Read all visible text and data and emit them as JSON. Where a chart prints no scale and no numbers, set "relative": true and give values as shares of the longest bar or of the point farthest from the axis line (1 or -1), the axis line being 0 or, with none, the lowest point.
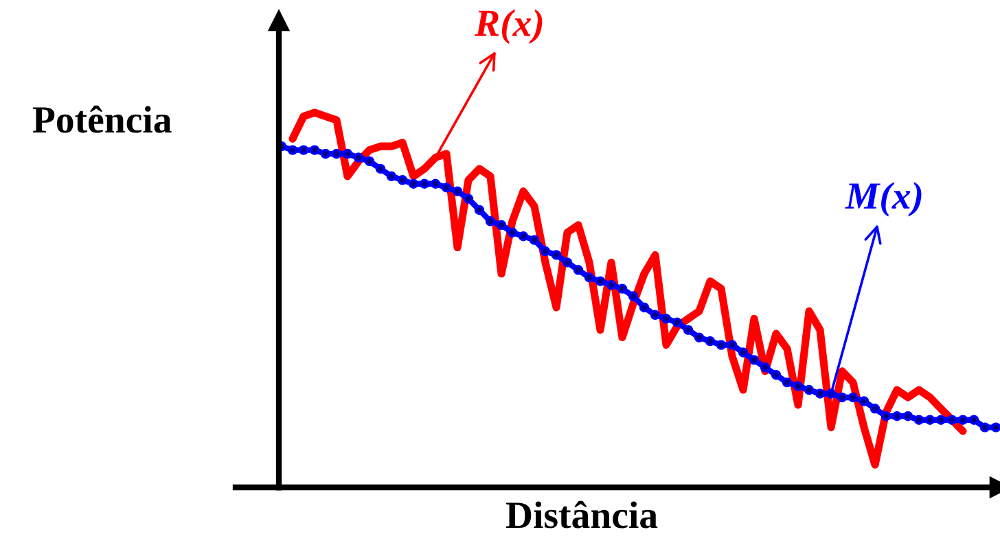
{
  "chart_data": {
    "type": "line",
    "relative": true,
    "xlabel": "Distância",
    "ylabel": "Potência",
    "categories": [
      null,
      null,
      null,
      null,
      null,
      null,
      null,
      null,
      null,
      null,
      null,
      null,
      null,
      null,
      null,
      null,
      null,
      null,
      null,
      null,
      null,
      null,
      null,
      null,
      null,
      null,
      null,
      null,
      null,
      null,
      null,
      null,
      null,
      null,
      null,
      null,
      null,
      null,
      null,
      null,
      null,
      null,
      null,
      null,
      null,
      null,
      null,
      null,
      null,
      null,
      null,
      null,
      null,
      null,
      null,
      null,
      null,
      null,
      null,
      null,
      null,
      null,
      null,
      null,
      null,
      null
    ],
    "series": [
      {
        "name": "R(x)",
        "color": "#ff0000",
        "marker": "none",
        "values": [
          null,
          0.93,
          0.99,
          1.0,
          0.99,
          0.98,
          0.83,
          0.87,
          0.9,
          0.91,
          0.91,
          0.92,
          0.83,
          0.85,
          0.88,
          0.89,
          0.64,
          0.82,
          0.85,
          0.83,
          0.57,
          0.71,
          0.79,
          0.75,
          0.6,
          0.48,
          0.68,
          0.7,
          0.6,
          0.42,
          0.6,
          0.4,
          0.49,
          0.57,
          0.62,
          0.38,
          0.43,
          0.45,
          0.47,
          0.55,
          0.53,
          0.35,
          0.26,
          0.45,
          0.31,
          0.41,
          0.37,
          0.22,
          0.47,
          0.42,
          0.16,
          0.31,
          0.28,
          0.16,
          0.06,
          0.2,
          0.26,
          0.24,
          0.26,
          0.24,
          0.21,
          0.18,
          0.15,
          null,
          null,
          null
        ]
      },
      {
        "name": "M(x)",
        "color": "#0000ff",
        "marker": "circle",
        "values": [
          0.91,
          0.9,
          0.9,
          0.9,
          0.89,
          0.89,
          0.89,
          0.88,
          0.87,
          0.85,
          0.83,
          0.82,
          0.81,
          0.81,
          0.81,
          0.8,
          0.79,
          0.77,
          0.74,
          0.71,
          0.7,
          0.68,
          0.67,
          0.66,
          0.63,
          0.62,
          0.6,
          0.58,
          0.56,
          0.55,
          0.54,
          0.53,
          0.51,
          0.48,
          0.46,
          0.45,
          0.44,
          0.42,
          0.4,
          0.39,
          0.38,
          0.38,
          0.36,
          0.34,
          0.32,
          0.3,
          0.28,
          0.27,
          0.26,
          0.25,
          0.25,
          0.24,
          0.24,
          0.23,
          0.21,
          0.19,
          0.19,
          0.19,
          0.18,
          0.18,
          0.18,
          0.18,
          0.18,
          0.18,
          0.16,
          0.16
        ]
      }
    ]
  }
}
